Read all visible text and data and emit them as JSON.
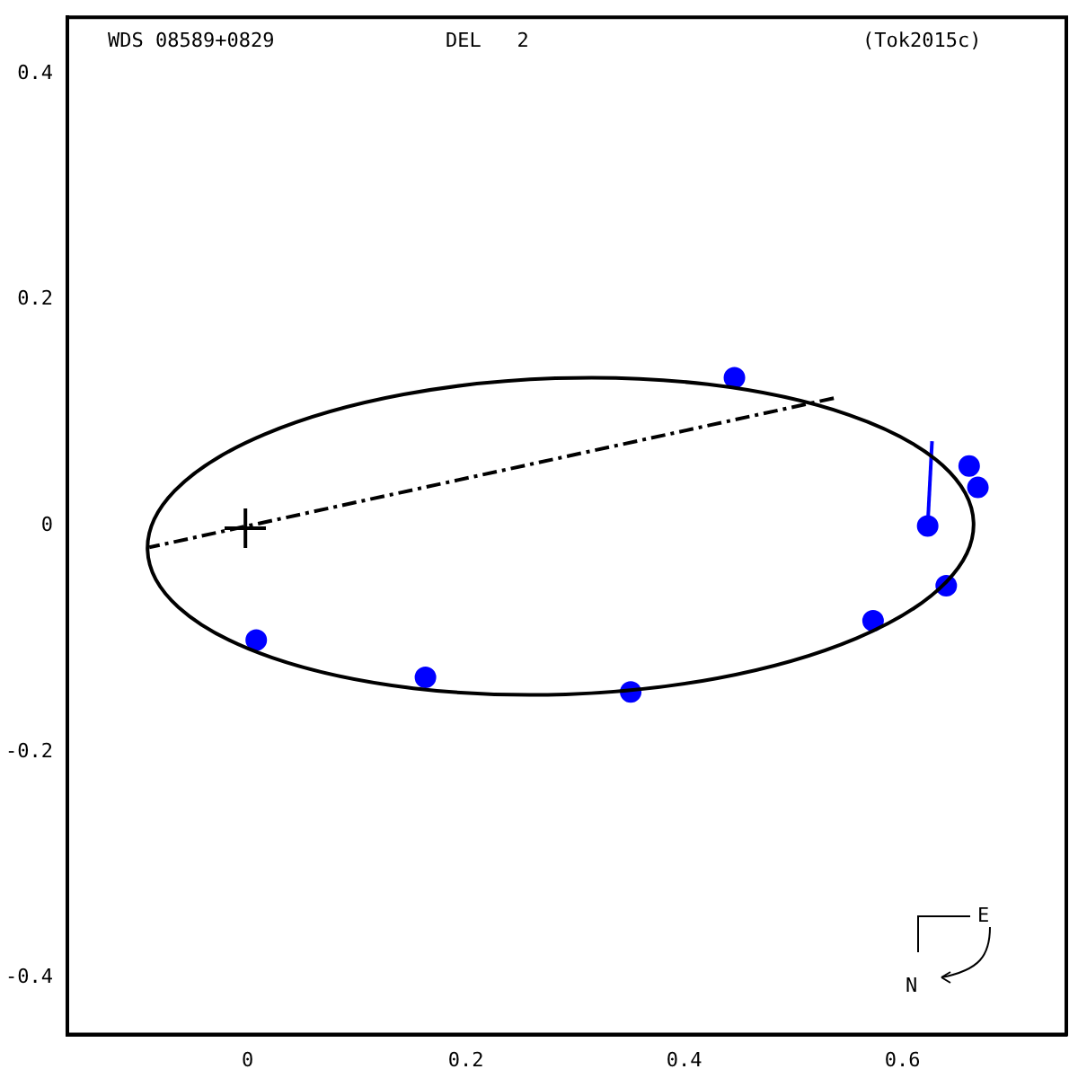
{
  "chart_data": {
    "type": "scatter",
    "annotations": [
      "WDS 08589+0829",
      "DEL   2",
      "(Tok2015c)",
      "E",
      "N"
    ],
    "xlim": [
      -0.165,
      0.75
    ],
    "ylim": [
      -0.45,
      0.45
    ],
    "xticks": [
      0,
      {
        "value": 0.2,
        "label": "0.2"
      },
      {
        "value": 0.4,
        "label": "0.4"
      },
      {
        "value": 0.6,
        "label": "0.6"
      }
    ],
    "yticks": [
      {
        "value": -0.4,
        "label": "-0.4"
      },
      {
        "value": -0.2,
        "label": "-0.2"
      },
      0,
      {
        "value": 0.2,
        "label": "0.2"
      },
      {
        "value": 0.4,
        "label": "0.4"
      }
    ],
    "grid": false,
    "legend": false,
    "series": [
      {
        "type": "line",
        "color": "#000000",
        "marker": "none",
        "line_style": "dashed",
        "x": [
          0.537,
          -0.09
        ],
        "values": [
          0.113,
          -0.019
        ]
      },
      {
        "type": "line",
        "color": "#0000ff",
        "marker": "none",
        "line_style": "solid",
        "x": [
          0.623,
          0.627
        ],
        "values": [
          0.0,
          0.075
        ]
      },
      {
        "type": "scatter",
        "color": "#0000ff",
        "marker": "circle",
        "x": [
          0.008,
          0.163,
          0.351,
          0.446,
          0.573,
          0.64,
          0.623,
          0.661,
          0.669
        ],
        "values": [
          -0.101,
          -0.134,
          -0.147,
          0.131,
          -0.084,
          -0.053,
          0.0,
          0.053,
          0.034
        ]
      }
    ]
  }
}
